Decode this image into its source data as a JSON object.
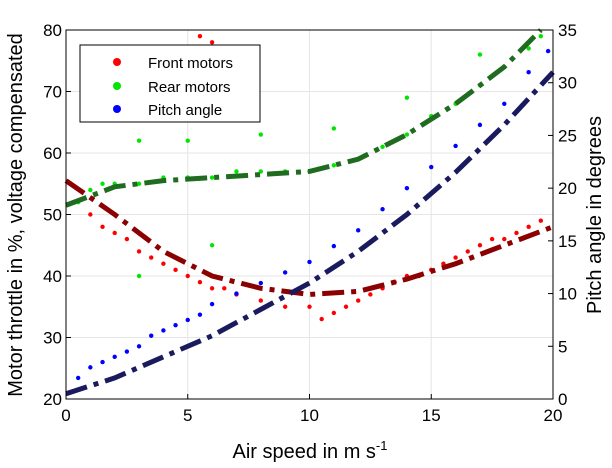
{
  "chart_data": {
    "type": "scatter",
    "xlabel": "Air speed in m s",
    "xlabel_sup": "-1",
    "ylabel_left": "Motor throttle in %, voltage compensated",
    "ylabel_right": "Pitch angle in degrees",
    "xlim": [
      0,
      20
    ],
    "ylim_left": [
      20,
      80
    ],
    "ylim_right": [
      0,
      35
    ],
    "x_ticks": [
      "0",
      "5",
      "10",
      "15",
      "20"
    ],
    "y_left_ticks": [
      "20",
      "30",
      "40",
      "50",
      "60",
      "70",
      "80"
    ],
    "y_right_ticks": [
      "0",
      "5",
      "10",
      "15",
      "20",
      "25",
      "30",
      "35"
    ],
    "grid": true,
    "legend_position": "top-left",
    "series": [
      {
        "name": "Front motors",
        "color": "#ff0000",
        "fit_color": "#8b0000",
        "axis": "left",
        "points": [
          [
            1.0,
            50
          ],
          [
            1.5,
            48
          ],
          [
            2.0,
            47
          ],
          [
            2.5,
            46
          ],
          [
            3.0,
            44
          ],
          [
            3.5,
            43
          ],
          [
            4.0,
            42
          ],
          [
            4.5,
            41
          ],
          [
            5.0,
            40
          ],
          [
            5.5,
            39
          ],
          [
            6.0,
            38
          ],
          [
            6.5,
            38
          ],
          [
            7.0,
            37
          ],
          [
            8.0,
            36
          ],
          [
            9.0,
            35
          ],
          [
            10.0,
            35
          ],
          [
            10.5,
            33
          ],
          [
            11.0,
            34
          ],
          [
            11.5,
            35
          ],
          [
            12.0,
            36
          ],
          [
            12.5,
            37
          ],
          [
            13.0,
            38
          ],
          [
            13.5,
            39
          ],
          [
            14.0,
            40
          ],
          [
            14.5,
            40
          ],
          [
            15.0,
            41
          ],
          [
            15.5,
            42
          ],
          [
            16.0,
            43
          ],
          [
            16.5,
            44
          ],
          [
            17.0,
            45
          ],
          [
            17.5,
            46
          ],
          [
            18.0,
            46
          ],
          [
            18.5,
            47
          ],
          [
            19.0,
            48
          ],
          [
            19.5,
            49
          ],
          [
            5.5,
            79
          ],
          [
            6.0,
            78
          ]
        ],
        "fit": [
          [
            0,
            55.5
          ],
          [
            2,
            50
          ],
          [
            4,
            44
          ],
          [
            6,
            40
          ],
          [
            8,
            38
          ],
          [
            10,
            37
          ],
          [
            12,
            37.5
          ],
          [
            14,
            39.5
          ],
          [
            16,
            42
          ],
          [
            18,
            45
          ],
          [
            20,
            48
          ]
        ]
      },
      {
        "name": "Rear motors",
        "color": "#00e600",
        "fit_color": "#1f6b1f",
        "axis": "left",
        "points": [
          [
            0.5,
            52
          ],
          [
            1.0,
            54
          ],
          [
            1.5,
            55
          ],
          [
            2.0,
            55
          ],
          [
            3.0,
            55
          ],
          [
            4.0,
            56
          ],
          [
            5.0,
            56
          ],
          [
            6.0,
            56
          ],
          [
            7.0,
            57
          ],
          [
            8.0,
            57
          ],
          [
            9.0,
            57
          ],
          [
            10.0,
            57
          ],
          [
            11.0,
            58
          ],
          [
            12.0,
            59
          ],
          [
            13.0,
            61
          ],
          [
            14.0,
            63
          ],
          [
            15.0,
            66
          ],
          [
            16.0,
            68
          ],
          [
            17.0,
            71
          ],
          [
            18.0,
            74
          ],
          [
            19.0,
            77
          ],
          [
            19.5,
            79
          ],
          [
            3.0,
            62
          ],
          [
            5.0,
            62
          ],
          [
            8.0,
            63
          ],
          [
            11.0,
            64
          ],
          [
            14.0,
            69
          ],
          [
            17.0,
            76
          ],
          [
            6.0,
            45
          ],
          [
            3.0,
            40
          ]
        ],
        "fit": [
          [
            0,
            51.5
          ],
          [
            2,
            54.5
          ],
          [
            4,
            55.5
          ],
          [
            6,
            56
          ],
          [
            8,
            56.5
          ],
          [
            10,
            57
          ],
          [
            12,
            59
          ],
          [
            14,
            63
          ],
          [
            16,
            68
          ],
          [
            18,
            74
          ],
          [
            19.5,
            80
          ]
        ]
      },
      {
        "name": "Pitch angle",
        "color": "#0000ff",
        "fit_color": "#1a1a5e",
        "axis": "right",
        "points": [
          [
            0.5,
            2
          ],
          [
            1.0,
            3
          ],
          [
            1.5,
            3.5
          ],
          [
            2.0,
            4
          ],
          [
            2.5,
            4.5
          ],
          [
            3.0,
            5
          ],
          [
            3.5,
            6
          ],
          [
            4.0,
            6.5
          ],
          [
            4.5,
            7
          ],
          [
            5.0,
            7.5
          ],
          [
            5.5,
            8
          ],
          [
            6.0,
            9
          ],
          [
            7.0,
            10
          ],
          [
            8.0,
            11
          ],
          [
            9.0,
            12
          ],
          [
            10.0,
            13
          ],
          [
            11.0,
            14.5
          ],
          [
            12.0,
            16
          ],
          [
            13.0,
            18
          ],
          [
            14.0,
            20
          ],
          [
            15.0,
            22
          ],
          [
            16.0,
            24
          ],
          [
            17.0,
            26
          ],
          [
            18.0,
            28
          ],
          [
            19.0,
            31
          ],
          [
            19.8,
            33
          ]
        ],
        "fit": [
          [
            0,
            0.5
          ],
          [
            2,
            2
          ],
          [
            4,
            4
          ],
          [
            6,
            6
          ],
          [
            8,
            8.5
          ],
          [
            10,
            11
          ],
          [
            12,
            14
          ],
          [
            14,
            17.5
          ],
          [
            16,
            21.5
          ],
          [
            18,
            26
          ],
          [
            20,
            31
          ]
        ]
      }
    ]
  }
}
